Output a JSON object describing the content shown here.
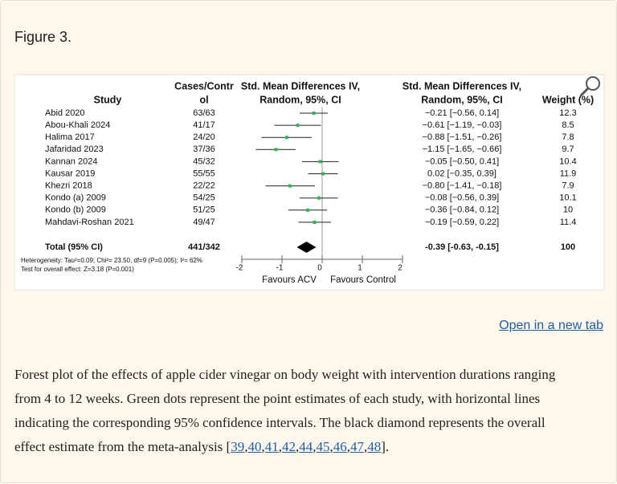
{
  "figure_label": "Figure 3.",
  "chart_data": {
    "type": "forest",
    "headers": {
      "study": "Study",
      "cases": [
        "Cases/Contr",
        "ol"
      ],
      "plot": [
        "Std. Mean Differences IV,",
        "Random, 95%, CI"
      ],
      "ci": [
        "Std. Mean Differences IV,",
        "Random, 95%, CI"
      ],
      "weight": "Weight (%)"
    },
    "studies": [
      "Abid 2020",
      "Abou-Khali 2024",
      "Halima 2017",
      "Jafaridad 2023",
      "Kannan 2024",
      "Kausar 2019",
      "Khezri 2018",
      "Kondo (a) 2009",
      "Kondo (b) 2009",
      "Mahdavi-Roshan 2021"
    ],
    "cases": [
      "63/63",
      "41/17",
      "24/20",
      "37/36",
      "45/32",
      "55/55",
      "22/22",
      "54/25",
      "51/25",
      "49/47"
    ],
    "estimates": [
      -0.21,
      -0.61,
      -0.88,
      -1.15,
      -0.05,
      0.02,
      -0.8,
      -0.08,
      -0.36,
      -0.19
    ],
    "lower": [
      -0.56,
      -1.19,
      -1.51,
      -1.65,
      -0.5,
      -0.35,
      -1.41,
      -0.56,
      -0.84,
      -0.59
    ],
    "upper": [
      0.14,
      -0.03,
      -0.26,
      -0.66,
      0.41,
      0.39,
      -0.18,
      0.39,
      0.12,
      0.22
    ],
    "ci_labels": [
      "−0.21 [−0.56,  0.14]",
      "−0.61 [−1.19, −0.03]",
      "−0.88 [−1.51, −0.26]",
      "−1.15 [−1.65, −0.66]",
      "−0.05 [−0.50,  0.41]",
      "0.02 [−0.35,  0.39]",
      "−0.80 [−1.41, −0.18]",
      "−0.08 [−0.56,  0.39]",
      "−0.36 [−0.84,  0.12]",
      "−0.19 [−0.59,  0.22]"
    ],
    "weights": [
      12.3,
      8.5,
      7.8,
      9.7,
      10.4,
      11.9,
      7.9,
      10.1,
      10,
      11.4
    ],
    "color": "#2fb84a",
    "total": {
      "label": "Total (95% CI)",
      "cases": "441/342",
      "estimate": -0.39,
      "lower": -0.63,
      "upper": -0.15,
      "ci_label": "-0.39 [-0.63, -0.15]",
      "weight": 100
    },
    "xlim": [
      -2,
      2
    ],
    "xticks": [
      -2,
      -1,
      0,
      1,
      2
    ],
    "xlabels": [
      "Favours ACV",
      "Favours Control"
    ],
    "notes": [
      "Heterogeneity: Tau²=0.09; Chi²= 23.50, df=9 (P=0.005); I²= 62%",
      "Test for overall effect: Z=3.18 (P=0.001)"
    ]
  },
  "link": "Open in a new tab",
  "caption": {
    "lines": [
      "Forest plot of the effects of apple cider vinegar on body weight with intervention durations ranging",
      "from 4 to 12 weeks. Green dots represent the point estimates of each study, with horizontal lines",
      "indicating the corresponding 95% confidence intervals. The black diamond represents the overall"
    ],
    "last_start": "effect estimate from the meta-analysis [",
    "refs": [
      "39",
      "40",
      "41",
      "42",
      "44",
      "45",
      "46",
      "47",
      "48"
    ],
    "separator": ",",
    "last_end": "]."
  }
}
